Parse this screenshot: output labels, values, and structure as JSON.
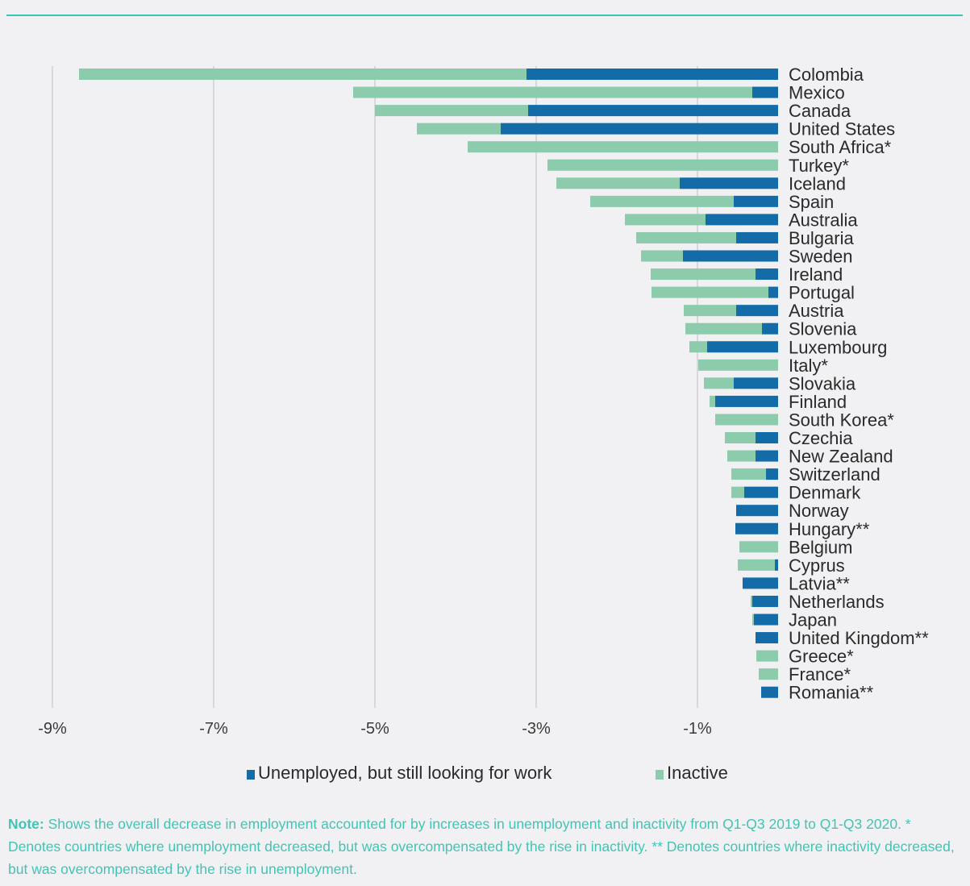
{
  "chart_data": {
    "type": "bar",
    "orientation": "horizontal",
    "stacked": true,
    "categories": [
      "Colombia",
      "Mexico",
      "Canada",
      "United States",
      "South Africa*",
      "Turkey*",
      "Iceland",
      "Spain",
      "Australia",
      "Bulgaria",
      "Sweden",
      "Ireland",
      "Portugal",
      "Austria",
      "Slovenia",
      "Luxembourg",
      "Italy*",
      "Slovakia",
      "Finland",
      "South Korea*",
      "Czechia",
      "New Zealand",
      "Switzerland",
      "Denmark",
      "Norway",
      "Hungary**",
      "Belgium",
      "Cyprus",
      "Latvia**",
      "Netherlands",
      "Japan",
      "United Kingdom**",
      "Greece*",
      "France*",
      "Romania**"
    ],
    "series": [
      {
        "name": "Unemployed, but still looking for work",
        "color": "#136ba8",
        "values": [
          -3.12,
          -0.32,
          -3.1,
          -3.44,
          0,
          0,
          -1.22,
          -0.55,
          -0.9,
          -0.52,
          -1.18,
          -0.28,
          -0.12,
          -0.52,
          -0.2,
          -0.88,
          0,
          -0.55,
          -0.78,
          0,
          -0.28,
          -0.28,
          -0.15,
          -0.42,
          -0.52,
          -0.53,
          0,
          -0.04,
          -0.44,
          -0.32,
          -0.3,
          -0.28,
          0,
          0,
          -0.21
        ]
      },
      {
        "name": "Inactive",
        "color": "#8ccbab",
        "values": [
          -5.55,
          -4.95,
          -1.9,
          -1.04,
          -3.85,
          -2.86,
          -1.53,
          -1.78,
          -1.0,
          -1.24,
          -0.52,
          -1.3,
          -1.45,
          -0.65,
          -0.95,
          -0.22,
          -0.99,
          -0.37,
          -0.07,
          -0.78,
          -0.38,
          -0.35,
          -0.43,
          -0.16,
          0,
          0,
          -0.48,
          -0.46,
          0,
          -0.02,
          -0.02,
          0,
          -0.27,
          -0.24,
          0
        ]
      }
    ],
    "x_ticks": [
      "-9%",
      "-7%",
      "-5%",
      "-3%",
      "-1%"
    ],
    "xlim": [
      -9.35,
      0
    ],
    "grid": true,
    "legend_position": "bottom"
  },
  "legend": {
    "unemployed_label": "Unemployed, but still looking for work",
    "inactive_label": "Inactive"
  },
  "note": {
    "label": "Note:",
    "text": "Shows the overall decrease in employment accounted for by increases in unemployment and inactivity from Q1-Q3 2019 to Q1-Q3 2020. * Denotes countries where unemployment decreased, but was overcompensated by the rise in inactivity. ** Denotes countries where inactivity decreased, but was overcompensated by the rise in unemployment."
  },
  "colors": {
    "accent": "#3cc3b4",
    "unemployed": "#136ba8",
    "inactive": "#8ccbab"
  }
}
